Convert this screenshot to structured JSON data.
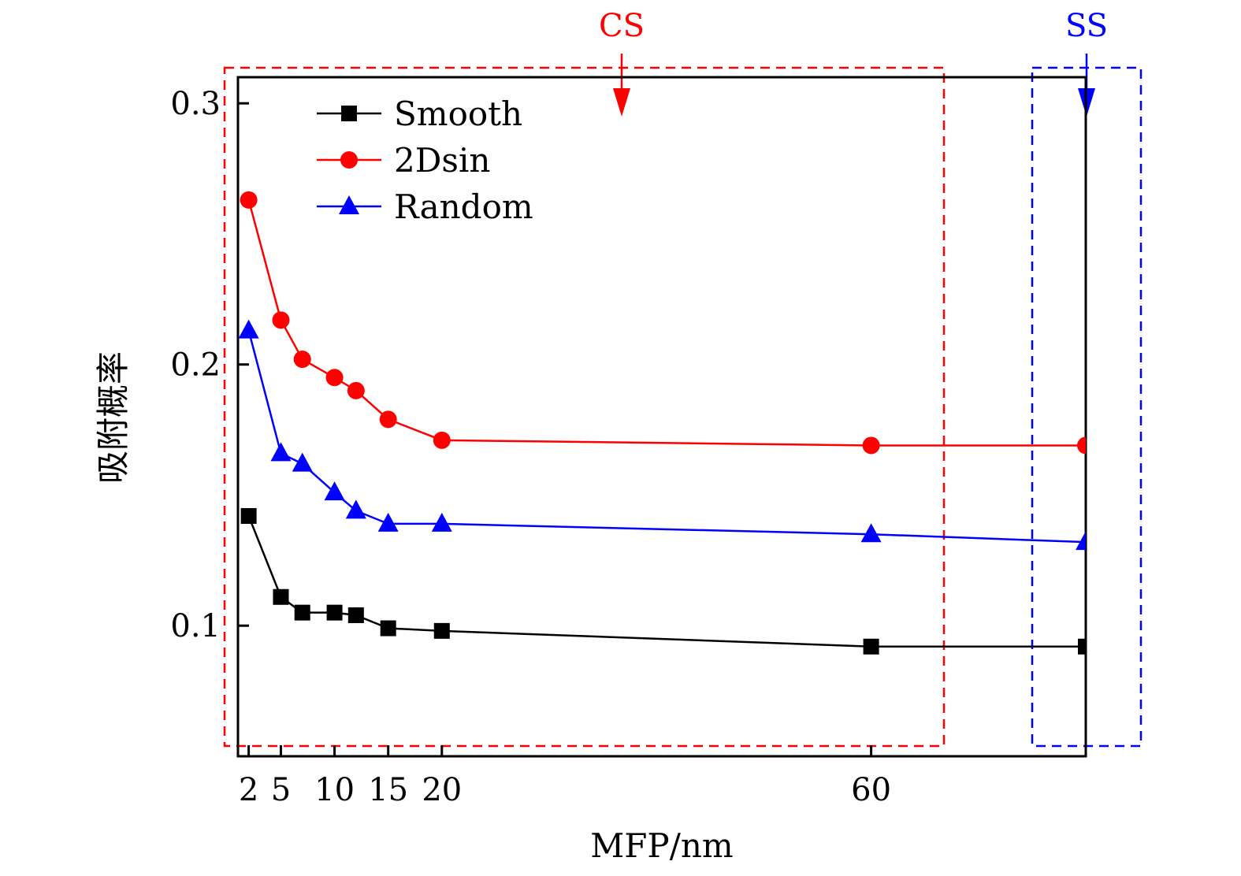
{
  "chart_data": {
    "type": "line",
    "title": "",
    "xlabel": "MFP/nm",
    "ylabel": "吸附概率",
    "xlim": [
      1,
      80
    ],
    "ylim": [
      0.05,
      0.31
    ],
    "x_ticks": [
      2,
      5,
      10,
      15,
      20,
      60
    ],
    "x_tick_labels": [
      "2",
      "5",
      "10",
      "15",
      "20",
      "60"
    ],
    "y_ticks": [
      0.1,
      0.2,
      0.3
    ],
    "y_tick_labels": [
      "0.1",
      "0.2",
      "0.3"
    ],
    "grid": false,
    "legend_position": "top-left",
    "x": [
      2,
      5,
      7,
      10,
      12,
      15,
      20,
      60,
      80
    ],
    "series": [
      {
        "name": "Smooth",
        "color": "#000000",
        "marker": "square",
        "values": [
          0.142,
          0.111,
          0.105,
          0.105,
          0.104,
          0.099,
          0.098,
          0.092,
          0.092
        ]
      },
      {
        "name": "2Dsin",
        "color": "#ff0000",
        "marker": "circle",
        "values": [
          0.263,
          0.217,
          0.202,
          0.195,
          0.19,
          0.179,
          0.171,
          0.169,
          0.169
        ]
      },
      {
        "name": "Random",
        "color": "#0000ff",
        "marker": "triangle",
        "values": [
          0.213,
          0.166,
          0.162,
          0.151,
          0.144,
          0.139,
          0.139,
          0.135,
          0.132
        ]
      }
    ],
    "annotations": [
      {
        "label": "CS",
        "color": "#ff0000",
        "region_x": [
          1,
          67
        ],
        "arrow_x": 36
      },
      {
        "label": "SS",
        "color": "#0000ff",
        "region_x": [
          75,
          85
        ],
        "arrow_x": 80
      }
    ]
  }
}
